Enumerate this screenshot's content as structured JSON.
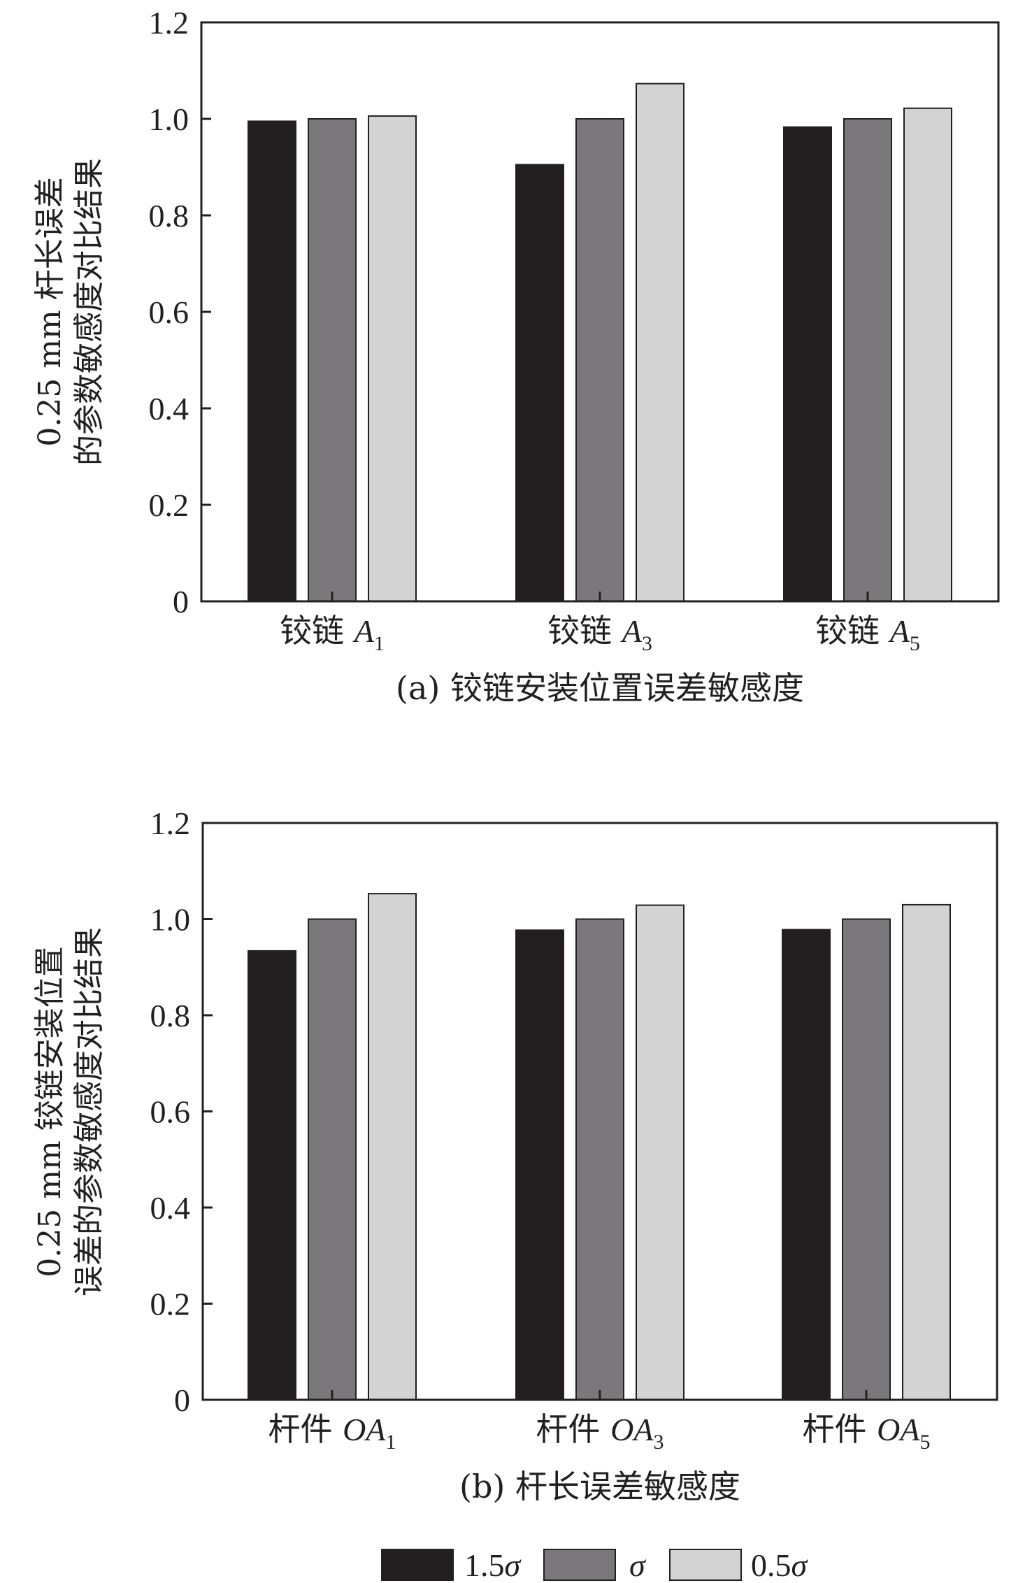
{
  "colors": {
    "series_0": "#231f20",
    "series_1": "#7a787a",
    "series_2": "#d3d3d3",
    "axis": "#231f20"
  },
  "legend": [
    {
      "label": "1.5",
      "symbol": "σ"
    },
    {
      "label": "",
      "symbol": "σ"
    },
    {
      "label": "0.5",
      "symbol": "σ"
    }
  ],
  "chart_data": [
    {
      "type": "bar",
      "ylim": [
        0,
        1.2
      ],
      "yticks": [
        "0",
        "0.2",
        "0.4",
        "0.6",
        "0.8",
        "1.0",
        "1.2"
      ],
      "ylabel_lines": [
        "0.25 mm 杆长误差",
        "的参数敏感度对比结果"
      ],
      "caption": "(a) 铰链安装位置误差敏感度",
      "categories": [
        {
          "prefix": "铰链 ",
          "italic": "A",
          "sub": "1"
        },
        {
          "prefix": "铰链 ",
          "italic": "A",
          "sub": "3"
        },
        {
          "prefix": "铰链 ",
          "italic": "A",
          "sub": "5"
        }
      ],
      "series": [
        {
          "values": [
            0.995,
            0.905,
            0.983
          ]
        },
        {
          "values": [
            1.0,
            1.0,
            1.0
          ]
        },
        {
          "values": [
            1.006,
            1.073,
            1.022
          ]
        }
      ]
    },
    {
      "type": "bar",
      "ylim": [
        0,
        1.2
      ],
      "yticks": [
        "0",
        "0.2",
        "0.4",
        "0.6",
        "0.8",
        "1.0",
        "1.2"
      ],
      "ylabel_lines": [
        "0.25 mm 铰链安装位置",
        "误差的参数敏感度对比结果"
      ],
      "caption": "(b) 杆长误差敏感度",
      "categories": [
        {
          "prefix": "杆件 ",
          "italic": "OA",
          "sub": "1"
        },
        {
          "prefix": "杆件 ",
          "italic": "OA",
          "sub": "3"
        },
        {
          "prefix": "杆件 ",
          "italic": "OA",
          "sub": "5"
        }
      ],
      "series": [
        {
          "values": [
            0.934,
            0.977,
            0.978
          ]
        },
        {
          "values": [
            1.0,
            1.0,
            1.0
          ]
        },
        {
          "values": [
            1.053,
            1.029,
            1.03
          ]
        }
      ]
    }
  ]
}
